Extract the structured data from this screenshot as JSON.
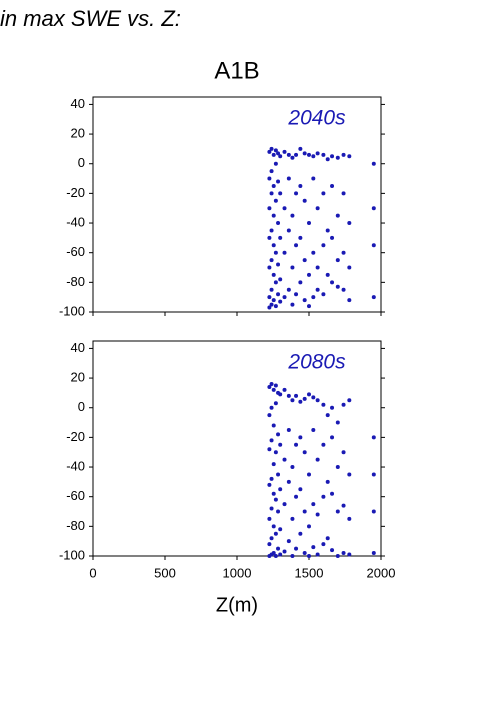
{
  "page_title": "in max SWE vs. Z:",
  "chart_data": [
    {
      "type": "scatter",
      "title": "A1B",
      "label": "2040s",
      "color": "#1a1ab4",
      "xlim": [
        0,
        2000
      ],
      "ylim": [
        -100,
        45
      ],
      "yticks": [
        -100,
        -80,
        -60,
        -40,
        -20,
        0,
        20,
        40
      ],
      "x": [
        1225,
        1225,
        1225,
        1225,
        1225,
        1225,
        1225,
        1240,
        1240,
        1240,
        1240,
        1240,
        1240,
        1240,
        1255,
        1255,
        1255,
        1255,
        1255,
        1255,
        1270,
        1270,
        1270,
        1270,
        1270,
        1270,
        1285,
        1285,
        1285,
        1285,
        1285,
        1300,
        1300,
        1300,
        1300,
        1300,
        1330,
        1330,
        1330,
        1330,
        1360,
        1360,
        1360,
        1360,
        1385,
        1385,
        1385,
        1385,
        1410,
        1410,
        1410,
        1410,
        1440,
        1440,
        1440,
        1440,
        1470,
        1470,
        1470,
        1470,
        1500,
        1500,
        1500,
        1500,
        1530,
        1530,
        1530,
        1530,
        1560,
        1560,
        1560,
        1560,
        1600,
        1600,
        1600,
        1600,
        1630,
        1630,
        1630,
        1660,
        1660,
        1660,
        1660,
        1700,
        1700,
        1700,
        1700,
        1740,
        1740,
        1740,
        1740,
        1780,
        1780,
        1780,
        1780,
        1950,
        1950,
        1950,
        1950
      ],
      "y": [
        8,
        -10,
        -30,
        -50,
        -70,
        -90,
        -97,
        10,
        -5,
        -20,
        -45,
        -65,
        -85,
        -95,
        6,
        -15,
        -35,
        -55,
        -75,
        -92,
        9,
        0,
        -25,
        -60,
        -80,
        -96,
        7,
        -12,
        -40,
        -68,
        -88,
        5,
        -20,
        -50,
        -78,
        -93,
        8,
        -30,
        -60,
        -90,
        6,
        -10,
        -45,
        -85,
        4,
        -35,
        -70,
        -95,
        6,
        -20,
        -55,
        -88,
        10,
        -15,
        -50,
        -80,
        7,
        -25,
        -65,
        -92,
        6,
        -40,
        -75,
        -96,
        5,
        -10,
        -60,
        -90,
        7,
        -30,
        -70,
        -85,
        6,
        -20,
        -55,
        -88,
        3,
        -45,
        -75,
        5,
        -15,
        -50,
        -80,
        4,
        -35,
        -65,
        -83,
        6,
        -20,
        -60,
        -85,
        5,
        -40,
        -70,
        -92,
        0,
        -30,
        -55,
        -90
      ]
    },
    {
      "type": "scatter",
      "label": "2080s",
      "xlabel": "Z(m)",
      "color": "#1a1ab4",
      "xlim": [
        0,
        2000
      ],
      "ylim": [
        -100,
        45
      ],
      "yticks": [
        -100,
        -80,
        -60,
        -40,
        -20,
        0,
        20,
        40
      ],
      "xticks": [
        0,
        500,
        1000,
        1500,
        2000
      ],
      "x": [
        1225,
        1225,
        1225,
        1225,
        1225,
        1225,
        1225,
        1240,
        1240,
        1240,
        1240,
        1240,
        1240,
        1240,
        1255,
        1255,
        1255,
        1255,
        1255,
        1255,
        1270,
        1270,
        1270,
        1270,
        1270,
        1270,
        1285,
        1285,
        1285,
        1285,
        1285,
        1300,
        1300,
        1300,
        1300,
        1300,
        1330,
        1330,
        1330,
        1330,
        1360,
        1360,
        1360,
        1360,
        1385,
        1385,
        1385,
        1385,
        1410,
        1410,
        1410,
        1410,
        1440,
        1440,
        1440,
        1440,
        1470,
        1470,
        1470,
        1470,
        1500,
        1500,
        1500,
        1500,
        1530,
        1530,
        1530,
        1530,
        1560,
        1560,
        1560,
        1560,
        1600,
        1600,
        1600,
        1600,
        1630,
        1630,
        1630,
        1660,
        1660,
        1660,
        1660,
        1700,
        1700,
        1700,
        1700,
        1740,
        1740,
        1740,
        1740,
        1780,
        1780,
        1780,
        1780,
        1950,
        1950,
        1950,
        1950
      ],
      "y": [
        14,
        -5,
        -28,
        -52,
        -75,
        -92,
        -100,
        16,
        0,
        -22,
        -48,
        -68,
        -88,
        -99,
        12,
        -12,
        -38,
        -58,
        -80,
        -98,
        15,
        3,
        -30,
        -62,
        -85,
        -100,
        10,
        -18,
        -45,
        -70,
        -95,
        9,
        -25,
        -55,
        -82,
        -99,
        12,
        -35,
        -65,
        -97,
        8,
        -15,
        -50,
        -90,
        5,
        -40,
        -75,
        -100,
        8,
        -25,
        -60,
        -95,
        4,
        -20,
        -55,
        -85,
        6,
        -30,
        -70,
        -98,
        9,
        -45,
        -80,
        -100,
        7,
        -15,
        -65,
        -94,
        5,
        -35,
        -72,
        -99,
        2,
        -25,
        -60,
        -92,
        -5,
        -50,
        -88,
        0,
        -20,
        -58,
        -96,
        -10,
        -40,
        -70,
        -100,
        2,
        -30,
        -66,
        -98,
        5,
        -45,
        -75,
        -99,
        -20,
        -45,
        -70,
        -98
      ]
    }
  ]
}
